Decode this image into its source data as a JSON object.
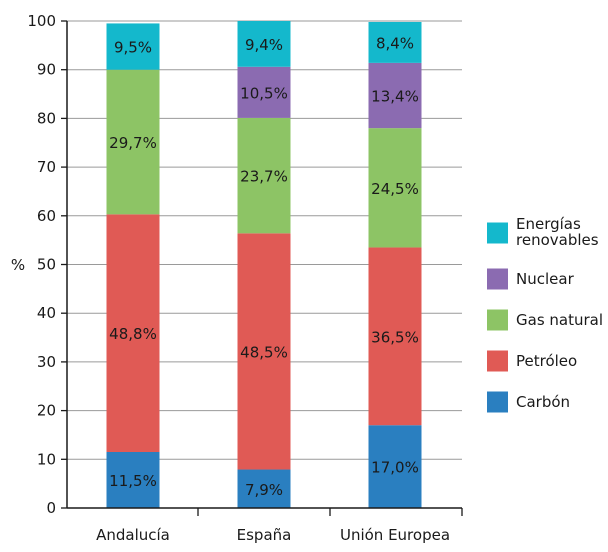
{
  "chart_data": {
    "type": "bar",
    "stacked": true,
    "title": "",
    "xlabel": "",
    "ylabel": "%",
    "ylim": [
      0,
      100
    ],
    "yticks": [
      0,
      10,
      20,
      30,
      40,
      50,
      60,
      70,
      80,
      90,
      100
    ],
    "categories": [
      "Andalucía",
      "España",
      "Unión Europea"
    ],
    "series": [
      {
        "name": "Carbón",
        "color": "#2a7fc0",
        "values": [
          11.5,
          7.9,
          17.0
        ],
        "labels": [
          "11,5%",
          "7,9%",
          "17,0%"
        ]
      },
      {
        "name": "Petróleo",
        "color": "#e05a55",
        "values": [
          48.8,
          48.5,
          36.5
        ],
        "labels": [
          "48,8%",
          "48,5%",
          "36,5%"
        ]
      },
      {
        "name": "Gas natural",
        "color": "#8dc465",
        "values": [
          29.7,
          23.7,
          24.5
        ],
        "labels": [
          "29,7%",
          "23,7%",
          "24,5%"
        ]
      },
      {
        "name": "Nuclear",
        "color": "#8b6bb1",
        "values": [
          0,
          10.5,
          13.4
        ],
        "labels": [
          "",
          "10,5%",
          "13,4%"
        ]
      },
      {
        "name": "Energías renovables",
        "color": "#14b8cc",
        "values": [
          9.5,
          9.4,
          8.4
        ],
        "labels": [
          "9,5%",
          "9,4%",
          "8,4%"
        ]
      }
    ],
    "legend": {
      "position": "right",
      "order": [
        "Energías renovables",
        "Nuclear",
        "Gas natural",
        "Petróleo",
        "Carbón"
      ],
      "display_lines": {
        "Energías renovables": [
          "Energías",
          "renovables"
        ]
      }
    },
    "grid": true,
    "grid_color": "#9a9a9a"
  }
}
